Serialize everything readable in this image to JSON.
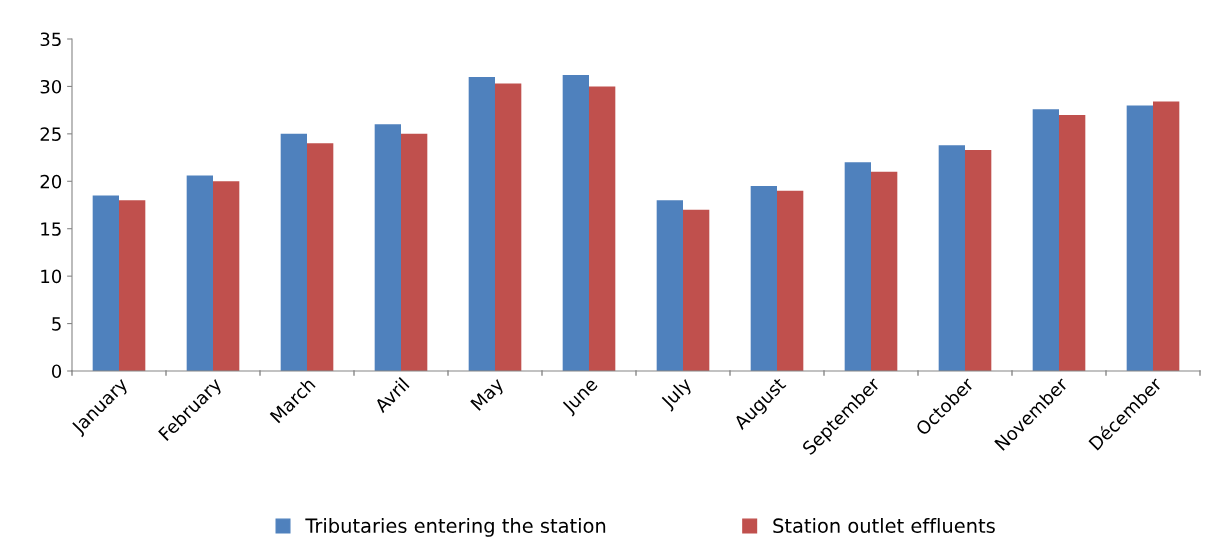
{
  "chart_data": {
    "type": "bar",
    "categories": [
      "January",
      "February",
      "March",
      "Avril",
      "May",
      "June",
      "July",
      "August",
      "September",
      "October",
      "November",
      "Décember"
    ],
    "series": [
      {
        "name": "Tributaries entering the station",
        "color": "#4f81bd",
        "values": [
          18.5,
          20.6,
          25,
          26,
          31,
          31.2,
          18,
          19.5,
          22,
          23.8,
          27.6,
          28
        ]
      },
      {
        "name": "Station outlet effluents",
        "color": "#c0504d",
        "values": [
          18,
          20,
          24,
          25,
          30.3,
          30,
          17,
          19,
          21,
          23.3,
          27,
          28.4
        ]
      }
    ],
    "ylim": [
      0,
      35
    ],
    "yticks": [
      0,
      5,
      10,
      15,
      20,
      25,
      30,
      35
    ],
    "grid": false,
    "legend": "bottom"
  }
}
